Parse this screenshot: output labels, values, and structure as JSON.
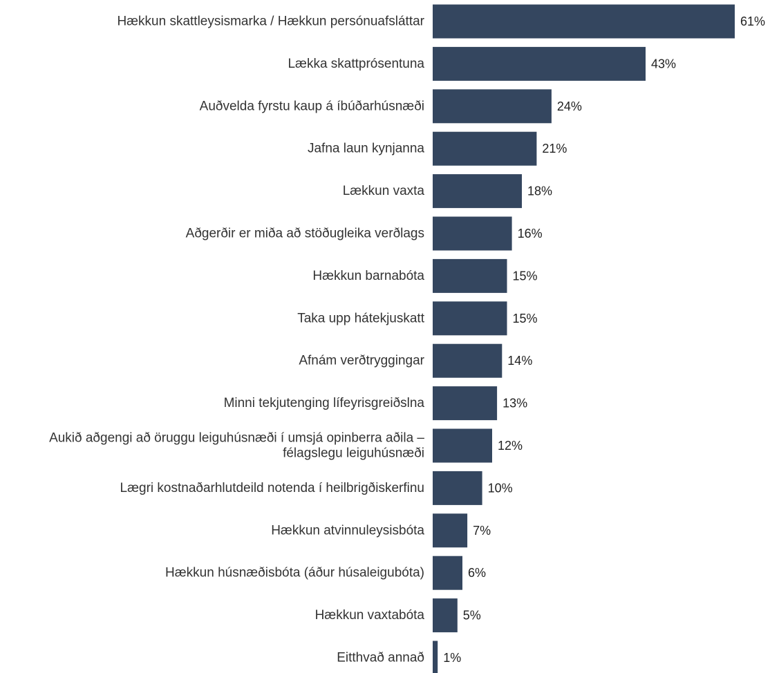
{
  "colors": {
    "bar": "#34465f",
    "label_text": "#333333",
    "value_text": "#222222",
    "background": "#ffffff"
  },
  "chart_data": {
    "type": "bar",
    "orientation": "horizontal",
    "title": "",
    "xlabel": "",
    "ylabel": "",
    "grid": false,
    "legend": "none",
    "xlim": [
      0,
      61
    ],
    "categories": [
      [
        "Hækkun skattleysismarka / Hækkun persónuafsláttar"
      ],
      [
        "Lækka skattprósentuna"
      ],
      [
        "Auðvelda fyrstu kaup á íbúðarhúsnæði"
      ],
      [
        "Jafna laun kynjanna"
      ],
      [
        "Lækkun vaxta"
      ],
      [
        "Aðgerðir er miða að stöðugleika verðlags"
      ],
      [
        "Hækkun barnabóta"
      ],
      [
        "Taka upp hátekjuskatt"
      ],
      [
        "Afnám verðtryggingar"
      ],
      [
        "Minni tekjutenging lífeyrisgreiðslna"
      ],
      [
        "Aukið aðgengi að öruggu leiguhúsnæði í umsjá opinberra aðila –",
        "félagslegu leiguhúsnæði"
      ],
      [
        "Lægri kostnaðarhlutdeild notenda í heilbrigðiskerfinu"
      ],
      [
        "Hækkun atvinnuleysisbóta"
      ],
      [
        "Hækkun húsnæðisbóta (áður húsaleigubóta)"
      ],
      [
        "Hækkun vaxtabóta"
      ],
      [
        "Eitthvað annað"
      ]
    ],
    "series": [
      {
        "values": [
          61,
          43,
          24,
          21,
          18,
          16,
          15,
          15,
          14,
          13,
          12,
          10,
          7,
          6,
          5,
          1
        ],
        "data_labels": [
          "61%",
          "43%",
          "24%",
          "21%",
          "18%",
          "16%",
          "15%",
          "15%",
          "14%",
          "13%",
          "12%",
          "10%",
          "7%",
          "6%",
          "5%",
          "1%"
        ]
      }
    ]
  }
}
